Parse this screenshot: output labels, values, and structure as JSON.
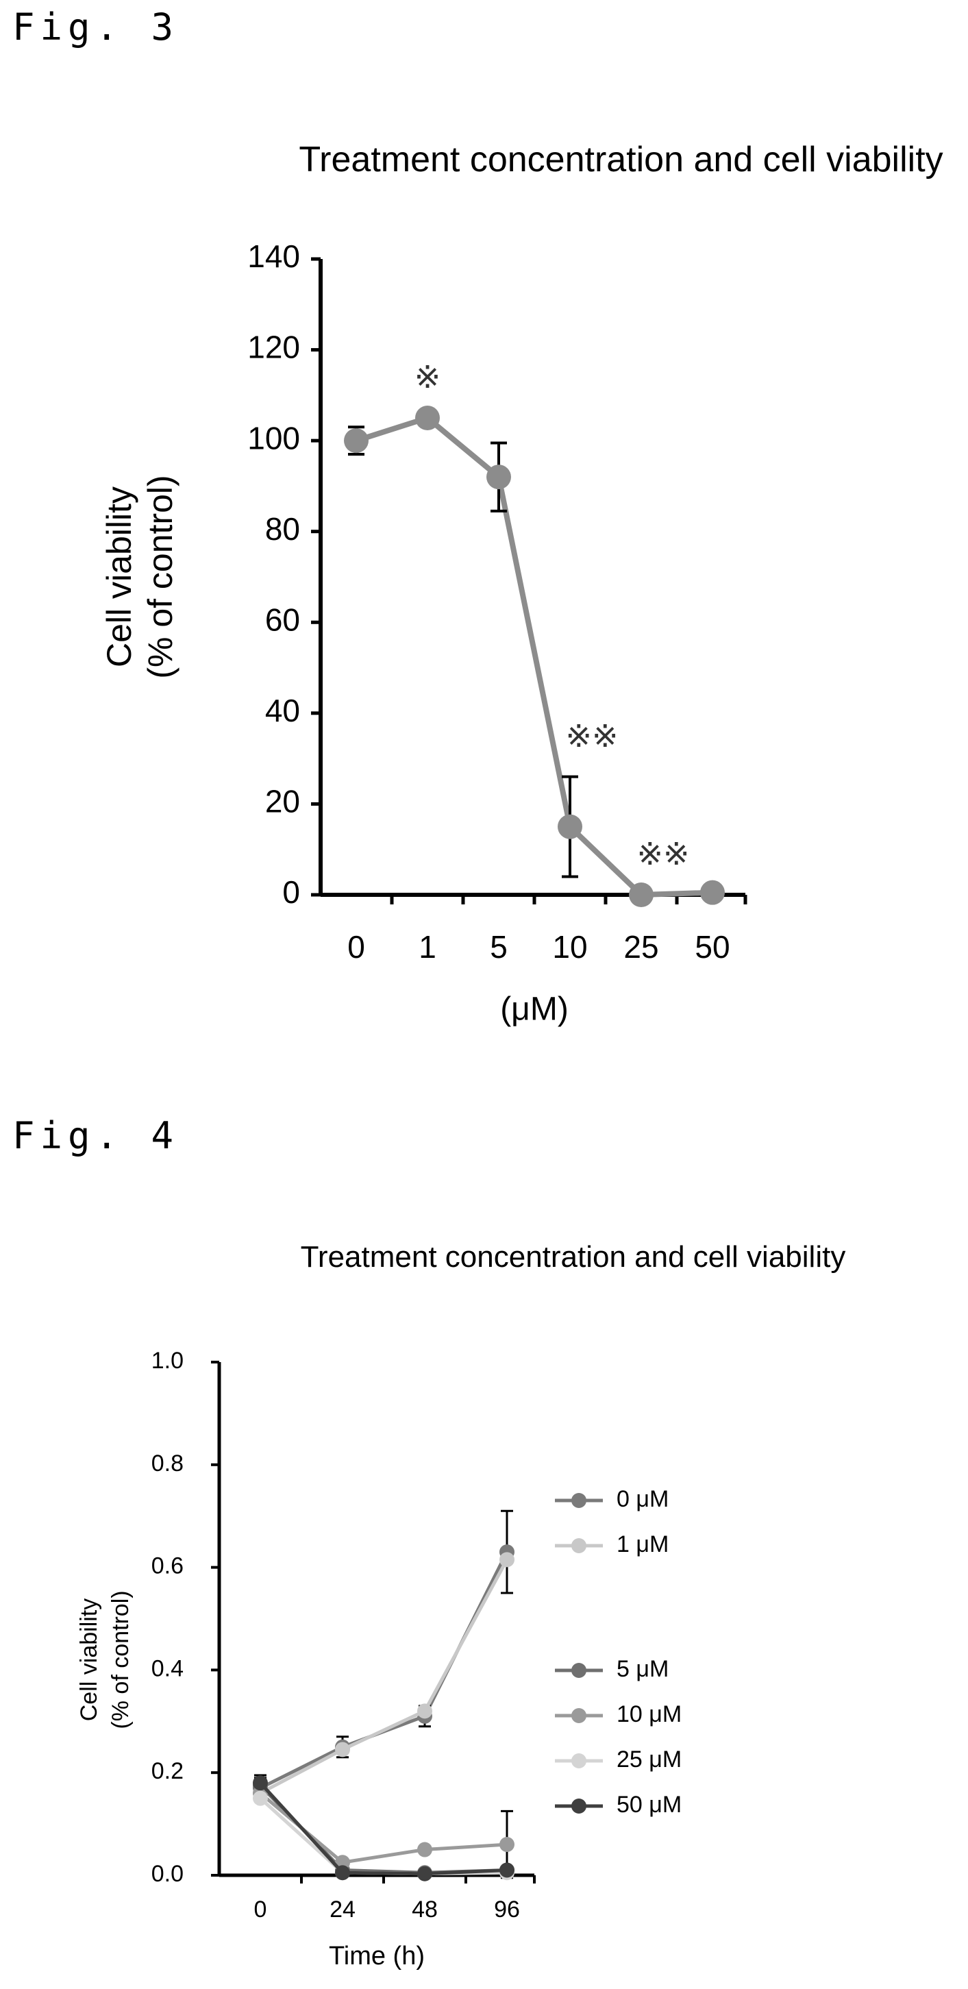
{
  "figures": [
    {
      "label": "Fig. 3",
      "chart_data": {
        "type": "line",
        "title": "Treatment concentration and cell viability",
        "ylabel": "Cell viability\n(% of control)",
        "xlabel": "(μM)",
        "categories": [
          "0",
          "1",
          "5",
          "10",
          "25",
          "50"
        ],
        "ylim": [
          0,
          140
        ],
        "yticks": [
          "0",
          "20",
          "40",
          "60",
          "80",
          "100",
          "120",
          "140"
        ],
        "grid": false,
        "series": [
          {
            "values": [
              100,
              105,
              92,
              15,
              0,
              0.5
            ],
            "errors": [
              3,
              0,
              7.5,
              11,
              0,
              0
            ],
            "color": "#8c8c8c"
          }
        ],
        "annotations": [
          {
            "category": "1",
            "text": "※"
          },
          {
            "category": "10",
            "text": "※※"
          },
          {
            "category": "25",
            "text": "※※"
          }
        ]
      }
    },
    {
      "label": "Fig. 4",
      "chart_data": {
        "type": "line",
        "title": "Treatment concentration and cell viability",
        "ylabel": "Cell viability\n(% of control)",
        "xlabel": "Time (h)",
        "categories": [
          "0",
          "24",
          "48",
          "96"
        ],
        "ylim": [
          0,
          1.0
        ],
        "yticks": [
          "0.0",
          "0.2",
          "0.4",
          "0.6",
          "0.8",
          "1.0"
        ],
        "grid": false,
        "legend_position": "right",
        "series": [
          {
            "name": "0 μM",
            "values": [
              0.17,
              0.25,
              0.31,
              0.63
            ],
            "errors": [
              0.02,
              0.02,
              0.02,
              0.08
            ],
            "color": "#7a7a7a"
          },
          {
            "name": "1 μM",
            "values": [
              0.16,
              0.245,
              0.32,
              0.615
            ],
            "errors": [
              0,
              0,
              0,
              0
            ],
            "color": "#c8c8c8"
          },
          {
            "name": "5 μM",
            "values": [
              0.175,
              0.01,
              0.005,
              0.01
            ],
            "errors": [
              0.02,
              0,
              0,
              0
            ],
            "color": "#6f6f6f"
          },
          {
            "name": "10 μM",
            "values": [
              0.16,
              0.025,
              0.05,
              0.06
            ],
            "errors": [
              0,
              0,
              0,
              0.065
            ],
            "color": "#9a9a9a"
          },
          {
            "name": "25 μM",
            "values": [
              0.15,
              0.005,
              0.003,
              0.005
            ],
            "errors": [
              0,
              0,
              0,
              0
            ],
            "color": "#d4d4d4"
          },
          {
            "name": "50 μM",
            "values": [
              0.18,
              0.005,
              0.003,
              0.01
            ],
            "errors": [
              0,
              0,
              0,
              0
            ],
            "color": "#3f3f3f"
          }
        ]
      }
    }
  ]
}
